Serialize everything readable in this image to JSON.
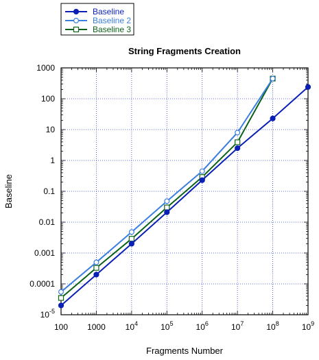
{
  "chart_data": {
    "type": "line",
    "title": "String Fragments Creation",
    "xlabel": "Fragments Number",
    "ylabel": "Baseline",
    "x_scale": "log",
    "y_scale": "log",
    "xlim": [
      100,
      1000000000
    ],
    "ylim": [
      1e-05,
      1000
    ],
    "grid": true,
    "legend_position": "top-left, outside plot",
    "x_ticks": [
      {
        "value": 100,
        "label": "100"
      },
      {
        "value": 1000,
        "label": "1000"
      },
      {
        "value": 10000,
        "base": "10",
        "exp": "4"
      },
      {
        "value": 100000,
        "base": "10",
        "exp": "5"
      },
      {
        "value": 1000000,
        "base": "10",
        "exp": "6"
      },
      {
        "value": 10000000,
        "base": "10",
        "exp": "7"
      },
      {
        "value": 100000000,
        "base": "10",
        "exp": "8"
      },
      {
        "value": 1000000000,
        "base": "10",
        "exp": "9"
      }
    ],
    "y_ticks": [
      {
        "value": 1e-05,
        "base": "10",
        "exp": "-5"
      },
      {
        "value": 0.0001,
        "label": "0.0001"
      },
      {
        "value": 0.001,
        "label": "0.001"
      },
      {
        "value": 0.01,
        "label": "0.01"
      },
      {
        "value": 0.1,
        "label": "0.1"
      },
      {
        "value": 1,
        "label": "1"
      },
      {
        "value": 10,
        "label": "10"
      },
      {
        "value": 100,
        "label": "100"
      },
      {
        "value": 1000,
        "label": "1000"
      }
    ],
    "series": [
      {
        "name": "Baseline",
        "color": "#0a1fb5",
        "marker": "filled-circle",
        "x": [
          100,
          1000,
          10000,
          100000,
          1000000,
          10000000,
          100000000,
          1000000000
        ],
        "y": [
          2e-05,
          0.0002,
          0.002,
          0.021,
          0.23,
          2.5,
          23,
          240
        ]
      },
      {
        "name": "Baseline 2",
        "color": "#3a7ee0",
        "marker": "open-circle",
        "x": [
          100,
          1000,
          10000,
          100000,
          1000000,
          10000000,
          100000000
        ],
        "y": [
          5.5e-05,
          0.0005,
          0.0048,
          0.048,
          0.45,
          8,
          450
        ]
      },
      {
        "name": "Baseline 3",
        "color": "#0b6118",
        "marker": "open-square",
        "x": [
          100,
          1000,
          10000,
          100000,
          1000000,
          10000000,
          100000000
        ],
        "y": [
          3.5e-05,
          0.00033,
          0.0029,
          0.03,
          0.29,
          3.9,
          450
        ]
      }
    ]
  }
}
